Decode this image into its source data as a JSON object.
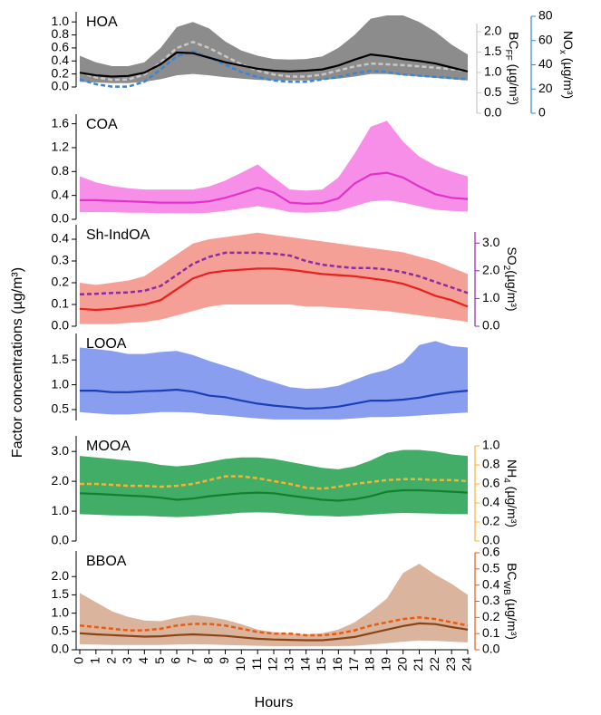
{
  "ylabel": "Factor concentrations (µg/m³)",
  "chart_data": [
    {
      "type": "line",
      "xlim": [
        0,
        24
      ],
      "x": [
        0,
        1,
        2,
        3,
        4,
        5,
        6,
        7,
        8,
        9,
        10,
        11,
        12,
        13,
        14,
        15,
        16,
        17,
        18,
        19,
        20,
        21,
        22,
        23,
        24
      ],
      "ylim": [
        0,
        1.1
      ],
      "yticks": [
        {
          "value": 0,
          "label": "0.0"
        },
        0.2,
        0.4,
        0.6,
        0.8,
        {
          "value": 1,
          "label": "1.0"
        }
      ],
      "y2lim": [
        0,
        2.2
      ],
      "y2ticks": [
        {
          "value": 0,
          "label": "0.0"
        },
        0.5,
        {
          "value": 1,
          "label": "1.0"
        },
        1.5,
        {
          "value": 2,
          "label": "2.0"
        }
      ],
      "y2label": [
        "BC",
        "FF",
        " (µg/m³)"
      ],
      "y3lim": [
        0,
        80
      ],
      "y3ticks": [
        0,
        20,
        40,
        60,
        80
      ],
      "y3label": [
        "NO",
        "x",
        " (µg/m³)"
      ],
      "series": [
        {
          "name": "HOA",
          "color": "#000000",
          "band_color": "#8c8c8c",
          "values": [
            0.22,
            0.18,
            0.16,
            0.17,
            0.22,
            0.35,
            0.53,
            0.52,
            0.45,
            0.38,
            0.33,
            0.28,
            0.25,
            0.24,
            0.25,
            0.27,
            0.33,
            0.42,
            0.5,
            0.47,
            0.43,
            0.4,
            0.36,
            0.3,
            0.24
          ],
          "lower": [
            0.08,
            0.07,
            0.06,
            0.06,
            0.08,
            0.12,
            0.18,
            0.2,
            0.18,
            0.15,
            0.13,
            0.11,
            0.1,
            0.1,
            0.1,
            0.11,
            0.13,
            0.16,
            0.2,
            0.2,
            0.18,
            0.16,
            0.14,
            0.12,
            0.1
          ],
          "upper": [
            0.48,
            0.38,
            0.32,
            0.32,
            0.38,
            0.6,
            0.92,
            1.0,
            0.9,
            0.7,
            0.56,
            0.48,
            0.43,
            0.42,
            0.43,
            0.47,
            0.6,
            0.8,
            1.05,
            1.1,
            1.1,
            1.0,
            0.85,
            0.65,
            0.5
          ]
        },
        {
          "axis": "y2",
          "color": "#c8c8c8",
          "dashed": true,
          "values": [
            1.0,
            0.88,
            0.82,
            0.83,
            0.95,
            1.25,
            1.6,
            1.75,
            1.6,
            1.4,
            1.2,
            1.05,
            0.95,
            0.9,
            0.9,
            0.95,
            1.05,
            1.15,
            1.22,
            1.2,
            1.18,
            1.15,
            1.12,
            1.08,
            1.04
          ]
        },
        {
          "axis": "y3",
          "color": "#3a86d6",
          "dashed": true,
          "values": [
            28,
            24,
            22,
            22,
            26,
            36,
            47,
            51,
            46,
            40,
            34,
            30,
            27,
            26,
            26,
            28,
            30,
            33,
            35,
            34,
            32,
            31,
            30,
            29,
            28
          ]
        }
      ]
    },
    {
      "type": "line",
      "xlim": [
        0,
        24
      ],
      "x": [
        0,
        1,
        2,
        3,
        4,
        5,
        6,
        7,
        8,
        9,
        10,
        11,
        12,
        13,
        14,
        15,
        16,
        17,
        18,
        19,
        20,
        21,
        22,
        23,
        24
      ],
      "ylim": [
        0,
        1.7
      ],
      "yticks": [
        {
          "value": 0,
          "label": "0.0"
        },
        0.4,
        0.8,
        1.2,
        1.6
      ],
      "series": [
        {
          "name": "COA",
          "color": "#e033c8",
          "band_color": "#f78ee8",
          "values": [
            0.32,
            0.32,
            0.31,
            0.3,
            0.29,
            0.28,
            0.28,
            0.28,
            0.3,
            0.36,
            0.44,
            0.53,
            0.45,
            0.28,
            0.26,
            0.27,
            0.35,
            0.6,
            0.75,
            0.78,
            0.7,
            0.55,
            0.42,
            0.36,
            0.34
          ],
          "lower": [
            0.12,
            0.12,
            0.12,
            0.11,
            0.11,
            0.1,
            0.1,
            0.1,
            0.11,
            0.14,
            0.18,
            0.22,
            0.18,
            0.12,
            0.11,
            0.12,
            0.14,
            0.22,
            0.3,
            0.32,
            0.28,
            0.22,
            0.16,
            0.14,
            0.13
          ],
          "upper": [
            0.72,
            0.62,
            0.56,
            0.52,
            0.5,
            0.5,
            0.5,
            0.5,
            0.55,
            0.65,
            0.78,
            0.92,
            0.7,
            0.5,
            0.48,
            0.5,
            0.7,
            1.1,
            1.55,
            1.65,
            1.3,
            1.05,
            0.9,
            0.8,
            0.72
          ]
        }
      ]
    },
    {
      "type": "line",
      "xlim": [
        0,
        24
      ],
      "x": [
        0,
        1,
        2,
        3,
        4,
        5,
        6,
        7,
        8,
        9,
        10,
        11,
        12,
        13,
        14,
        15,
        16,
        17,
        18,
        19,
        20,
        21,
        22,
        23,
        24
      ],
      "ylim": [
        0,
        0.45
      ],
      "yticks": [
        {
          "value": 0,
          "label": "0.0"
        },
        0.1,
        0.2,
        0.3,
        0.4
      ],
      "y2lim": [
        0,
        3.4
      ],
      "y2ticks": [
        {
          "value": 0,
          "label": "0.0"
        },
        {
          "value": 1,
          "label": "1.0"
        },
        {
          "value": 2,
          "label": "2.0"
        },
        {
          "value": 3,
          "label": "3.0"
        }
      ],
      "y2label": [
        "SO",
        "2",
        "(µg/m³)"
      ],
      "series": [
        {
          "name": "Sh-IndOA",
          "color": "#e8201f",
          "band_color": "#f5a096",
          "values": [
            0.08,
            0.075,
            0.08,
            0.09,
            0.1,
            0.12,
            0.17,
            0.22,
            0.245,
            0.255,
            0.26,
            0.265,
            0.265,
            0.26,
            0.25,
            0.24,
            0.235,
            0.23,
            0.22,
            0.21,
            0.195,
            0.17,
            0.14,
            0.12,
            0.09
          ],
          "lower": [
            0.01,
            0.01,
            0.01,
            0.015,
            0.02,
            0.03,
            0.05,
            0.07,
            0.09,
            0.1,
            0.1,
            0.1,
            0.1,
            0.1,
            0.09,
            0.09,
            0.085,
            0.08,
            0.075,
            0.07,
            0.06,
            0.05,
            0.04,
            0.03,
            0.02
          ],
          "upper": [
            0.2,
            0.19,
            0.2,
            0.21,
            0.23,
            0.28,
            0.33,
            0.38,
            0.4,
            0.41,
            0.42,
            0.43,
            0.42,
            0.41,
            0.4,
            0.39,
            0.38,
            0.37,
            0.36,
            0.35,
            0.34,
            0.32,
            0.3,
            0.27,
            0.24
          ]
        },
        {
          "axis": "y2",
          "color": "#8b2ca0",
          "dashed": true,
          "values": [
            1.15,
            1.17,
            1.2,
            1.22,
            1.28,
            1.45,
            1.85,
            2.25,
            2.5,
            2.65,
            2.65,
            2.65,
            2.62,
            2.55,
            2.35,
            2.22,
            2.15,
            2.1,
            2.1,
            2.05,
            1.95,
            1.8,
            1.6,
            1.4,
            1.2
          ]
        }
      ]
    },
    {
      "type": "line",
      "xlim": [
        0,
        24
      ],
      "x": [
        0,
        1,
        2,
        3,
        4,
        5,
        6,
        7,
        8,
        9,
        10,
        11,
        12,
        13,
        14,
        15,
        16,
        17,
        18,
        19,
        20,
        21,
        22,
        23,
        24
      ],
      "ylim": [
        0.28,
        1.96
      ],
      "yticks": [
        0.5,
        {
          "value": 1,
          "label": "1.0"
        },
        1.5
      ],
      "series": [
        {
          "name": "LOOA",
          "color": "#1b3fb7",
          "band_color": "#8a9ef0",
          "values": [
            0.88,
            0.88,
            0.85,
            0.85,
            0.87,
            0.88,
            0.9,
            0.86,
            0.78,
            0.75,
            0.68,
            0.62,
            0.58,
            0.55,
            0.52,
            0.53,
            0.56,
            0.62,
            0.68,
            0.68,
            0.7,
            0.74,
            0.8,
            0.85,
            0.88
          ],
          "lower": [
            0.45,
            0.42,
            0.4,
            0.4,
            0.42,
            0.45,
            0.45,
            0.44,
            0.4,
            0.38,
            0.35,
            0.32,
            0.3,
            0.3,
            0.3,
            0.3,
            0.3,
            0.32,
            0.35,
            0.35,
            0.36,
            0.38,
            0.4,
            0.42,
            0.44
          ],
          "upper": [
            1.75,
            1.72,
            1.68,
            1.62,
            1.62,
            1.66,
            1.68,
            1.6,
            1.48,
            1.38,
            1.28,
            1.15,
            1.05,
            0.95,
            0.92,
            0.93,
            0.98,
            1.1,
            1.22,
            1.3,
            1.45,
            1.8,
            1.88,
            1.78,
            1.75
          ]
        }
      ]
    },
    {
      "type": "line",
      "xlim": [
        0,
        24
      ],
      "x": [
        0,
        1,
        2,
        3,
        4,
        5,
        6,
        7,
        8,
        9,
        10,
        11,
        12,
        13,
        14,
        15,
        16,
        17,
        18,
        19,
        20,
        21,
        22,
        23,
        24
      ],
      "ylim": [
        0,
        3.4
      ],
      "yticks": [
        {
          "value": 0,
          "label": "0.0"
        },
        {
          "value": 1,
          "label": "1.0"
        },
        {
          "value": 2,
          "label": "2.0"
        },
        {
          "value": 3,
          "label": "3.0"
        }
      ],
      "y2lim": [
        0,
        1
      ],
      "y2ticks": [
        {
          "value": 0,
          "label": "0.0"
        },
        0.2,
        0.4,
        0.6,
        0.8,
        {
          "value": 1,
          "label": "1.0"
        }
      ],
      "y2label": [
        "NH",
        "4",
        " (µg/m³)"
      ],
      "series": [
        {
          "name": "MOOA",
          "color": "#11812f",
          "band_color": "#41ad67",
          "values": [
            1.6,
            1.58,
            1.55,
            1.52,
            1.5,
            1.45,
            1.38,
            1.42,
            1.5,
            1.55,
            1.6,
            1.62,
            1.6,
            1.52,
            1.45,
            1.38,
            1.35,
            1.4,
            1.5,
            1.65,
            1.7,
            1.7,
            1.68,
            1.65,
            1.62
          ],
          "lower": [
            0.9,
            0.88,
            0.86,
            0.85,
            0.84,
            0.82,
            0.8,
            0.82,
            0.86,
            0.9,
            0.95,
            0.96,
            0.95,
            0.9,
            0.86,
            0.84,
            0.82,
            0.84,
            0.88,
            0.92,
            0.94,
            0.93,
            0.92,
            0.9,
            0.9
          ],
          "upper": [
            2.85,
            2.8,
            2.75,
            2.7,
            2.65,
            2.55,
            2.5,
            2.55,
            2.65,
            2.75,
            2.8,
            2.8,
            2.75,
            2.65,
            2.55,
            2.45,
            2.4,
            2.5,
            2.7,
            2.95,
            3.05,
            3.05,
            3.0,
            2.9,
            2.85
          ]
        },
        {
          "axis": "y2",
          "color": "#f9b233",
          "dashed": true,
          "values": [
            0.6,
            0.6,
            0.59,
            0.58,
            0.58,
            0.57,
            0.58,
            0.6,
            0.64,
            0.68,
            0.68,
            0.66,
            0.63,
            0.6,
            0.56,
            0.55,
            0.57,
            0.6,
            0.62,
            0.64,
            0.65,
            0.65,
            0.64,
            0.64,
            0.63
          ]
        }
      ]
    },
    {
      "type": "line",
      "xlim": [
        0,
        24
      ],
      "x": [
        0,
        1,
        2,
        3,
        4,
        5,
        6,
        7,
        8,
        9,
        10,
        11,
        12,
        13,
        14,
        15,
        16,
        17,
        18,
        19,
        20,
        21,
        22,
        23,
        24
      ],
      "xticks": [
        0,
        1,
        2,
        3,
        4,
        5,
        6,
        7,
        8,
        9,
        10,
        11,
        12,
        13,
        14,
        15,
        16,
        17,
        18,
        19,
        20,
        21,
        22,
        23,
        24
      ],
      "xlabel": "Hours",
      "ylim": [
        0,
        2.6
      ],
      "yticks": [
        {
          "value": 0,
          "label": "0.0"
        },
        0.5,
        {
          "value": 1,
          "label": "1.0"
        },
        1.5,
        {
          "value": 2,
          "label": "2.0"
        }
      ],
      "y2lim": [
        0,
        0.6
      ],
      "y2ticks": [
        {
          "value": 0,
          "label": "0.0"
        },
        0.1,
        0.2,
        0.3,
        0.4,
        0.5,
        0.6
      ],
      "y2label": [
        "BC",
        "WB",
        " (µg/m³)"
      ],
      "series": [
        {
          "name": "BBOA",
          "color": "#8a4413",
          "band_color": "#dbb49d",
          "values": [
            0.45,
            0.42,
            0.4,
            0.38,
            0.36,
            0.37,
            0.4,
            0.42,
            0.4,
            0.38,
            0.34,
            0.3,
            0.28,
            0.27,
            0.26,
            0.26,
            0.3,
            0.35,
            0.45,
            0.55,
            0.65,
            0.72,
            0.7,
            0.62,
            0.55
          ],
          "lower": [
            0.15,
            0.14,
            0.13,
            0.13,
            0.13,
            0.13,
            0.14,
            0.15,
            0.14,
            0.13,
            0.12,
            0.11,
            0.1,
            0.1,
            0.1,
            0.1,
            0.1,
            0.11,
            0.14,
            0.18,
            0.22,
            0.25,
            0.24,
            0.22,
            0.2
          ],
          "upper": [
            1.55,
            1.3,
            1.05,
            0.9,
            0.8,
            0.78,
            0.88,
            0.95,
            0.9,
            0.82,
            0.7,
            0.55,
            0.48,
            0.44,
            0.42,
            0.45,
            0.55,
            0.75,
            1.05,
            1.4,
            2.1,
            2.35,
            2.05,
            1.8,
            1.5
          ]
        },
        {
          "axis": "y2",
          "color": "#e85b12",
          "dashed": true,
          "values": [
            0.15,
            0.14,
            0.13,
            0.12,
            0.12,
            0.13,
            0.15,
            0.16,
            0.16,
            0.15,
            0.13,
            0.11,
            0.1,
            0.1,
            0.09,
            0.09,
            0.1,
            0.12,
            0.15,
            0.17,
            0.19,
            0.2,
            0.19,
            0.17,
            0.15
          ]
        }
      ]
    }
  ]
}
